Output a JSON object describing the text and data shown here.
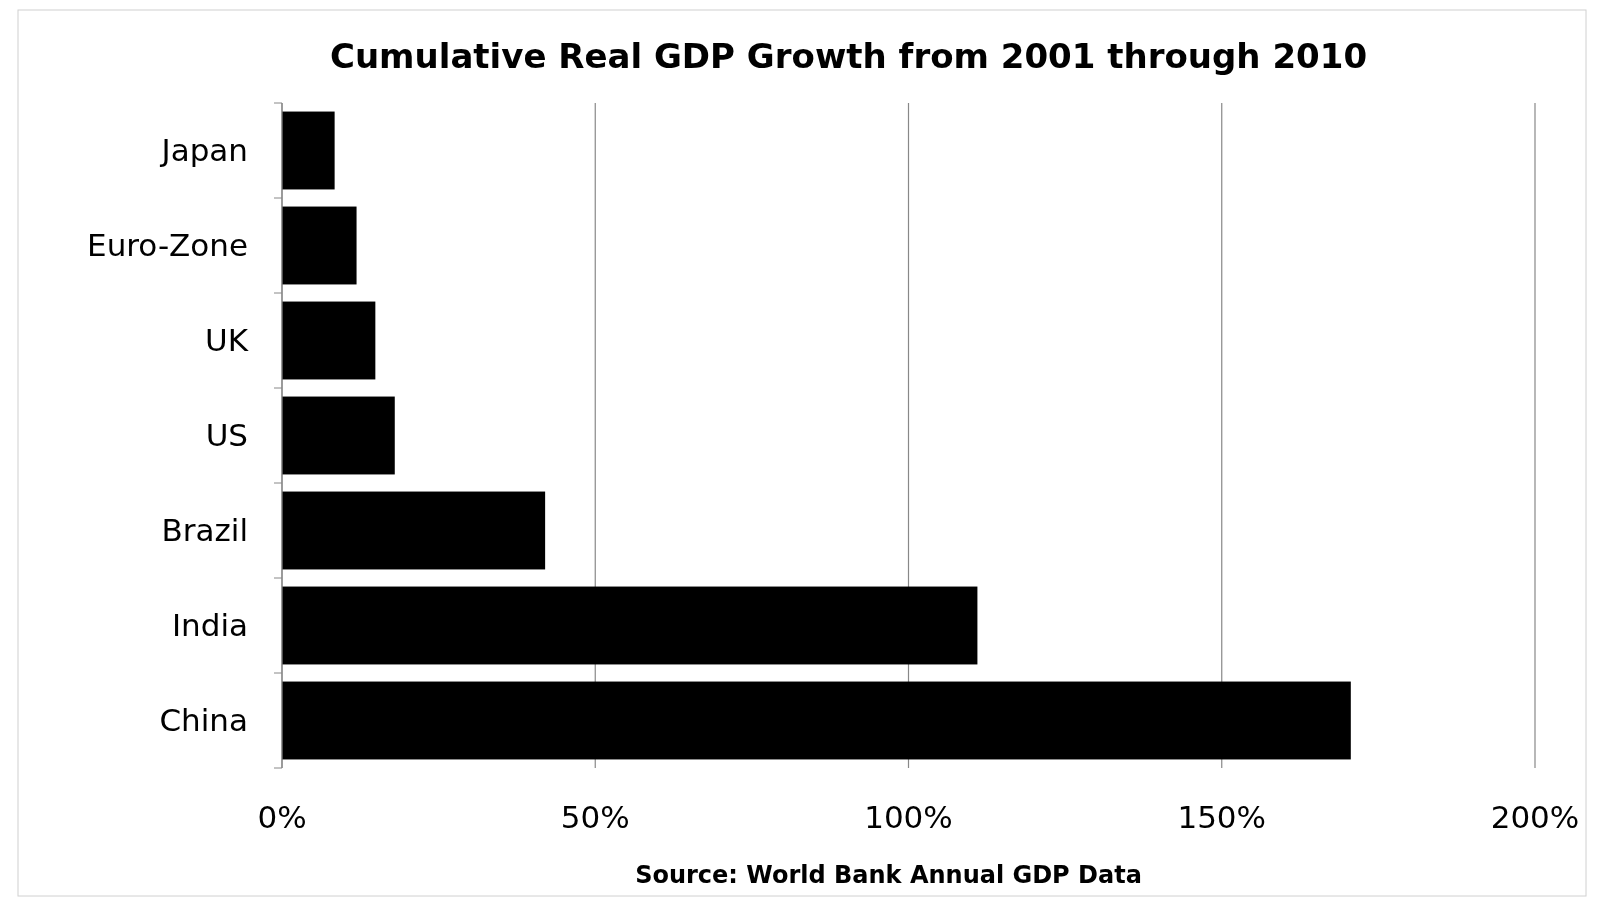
{
  "chart_data": {
    "type": "bar",
    "orientation": "horizontal",
    "title": "Cumulative Real GDP Growth from 2001 through 2010",
    "categories": [
      "Japan",
      "Euro-Zone",
      "UK",
      "US",
      "Brazil",
      "India",
      "China"
    ],
    "values": [
      8.4,
      11.9,
      14.9,
      18,
      42,
      111,
      170.6
    ],
    "color": "#000000",
    "xlim": [
      0,
      200
    ],
    "xticks": [
      {
        "value": 0,
        "label": "0%"
      },
      {
        "value": 50,
        "label": "50%"
      },
      {
        "value": 100,
        "label": "100%"
      },
      {
        "value": 150,
        "label": "150%"
      },
      {
        "value": 200,
        "label": "200%"
      }
    ],
    "grid": "x",
    "annotations": [
      "Source:  World Bank Annual GDP Data"
    ]
  }
}
